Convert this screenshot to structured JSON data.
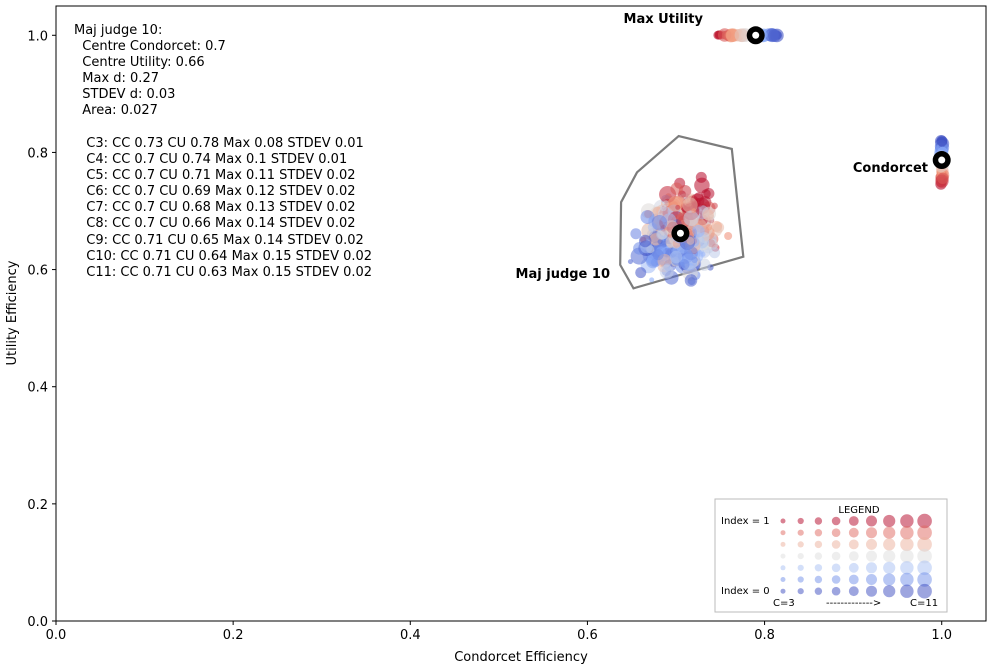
{
  "chart_data": {
    "type": "scatter",
    "xlabel": "Condorcet Efficiency",
    "ylabel": "Utility Efficiency",
    "xlim": [
      0.0,
      1.05
    ],
    "ylim": [
      0.0,
      1.05
    ],
    "x_ticks": [
      "0.0",
      "0.2",
      "0.4",
      "0.6",
      "0.8",
      "1.0"
    ],
    "y_ticks": [
      "0.0",
      "0.2",
      "0.4",
      "0.6",
      "0.8",
      "1.0"
    ],
    "grid": false,
    "stats_title": "Maj judge 10:",
    "stats_lines": [
      "  Centre Condorcet: 0.7",
      "  Centre Utility: 0.66",
      "  Max d: 0.27",
      "  STDEV d: 0.03",
      "  Area: 0.027"
    ],
    "candidate_lines": [
      "  C3: CC 0.73 CU 0.78 Max 0.08 STDEV 0.01",
      "  C4: CC 0.7 CU 0.74 Max 0.1 STDEV 0.01",
      "  C5: CC 0.7 CU 0.71 Max 0.11 STDEV 0.02",
      "  C6: CC 0.7 CU 0.69 Max 0.12 STDEV 0.02",
      "  C7: CC 0.7 CU 0.68 Max 0.13 STDEV 0.02",
      "  C8: CC 0.7 CU 0.66 Max 0.14 STDEV 0.02",
      "  C9: CC 0.71 CU 0.65 Max 0.14 STDEV 0.02",
      "  C10: CC 0.71 CU 0.64 Max 0.15 STDEV 0.02",
      "  C11: CC 0.71 CU 0.63 Max 0.15 STDEV 0.02"
    ],
    "centres": [
      {
        "label": "Max Utility",
        "x": 0.79,
        "y": 1.0
      },
      {
        "label": "Condorcet",
        "x": 1.0,
        "y": 0.787
      },
      {
        "label": "Maj judge 10",
        "x": 0.705,
        "y": 0.662
      }
    ],
    "hull": [
      [
        0.703,
        0.828
      ],
      [
        0.763,
        0.806
      ],
      [
        0.776,
        0.622
      ],
      [
        0.652,
        0.568
      ],
      [
        0.637,
        0.608
      ],
      [
        0.638,
        0.715
      ],
      [
        0.656,
        0.766
      ]
    ],
    "legend": {
      "title": "LEGEND",
      "index_top": "Index = 1",
      "index_bottom": "Index = 0",
      "c_min": "C=3",
      "arrow": "------------->",
      "c_max": "C=11"
    },
    "colors": {
      "low": "#3b4cc0",
      "high": "#b40426",
      "hull": "#6e6e6e"
    }
  }
}
